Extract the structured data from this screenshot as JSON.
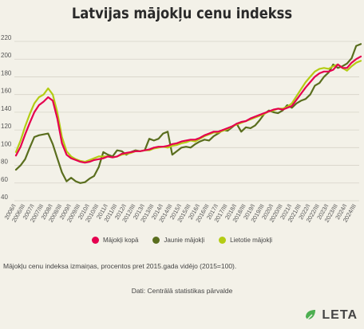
{
  "chart_data": {
    "type": "line",
    "title": "Latvijas mājokļu cenu indekss",
    "ylim": [
      40,
      220
    ],
    "yticks": [
      40,
      60,
      80,
      100,
      120,
      140,
      160,
      180,
      200,
      220
    ],
    "grid": true,
    "legend_position": "bottom",
    "x_tick_labels": [
      "2006/I",
      "2006/III",
      "2007/I",
      "2007/III",
      "2008/I",
      "2008/III",
      "2009/I",
      "2009/III",
      "2010/I",
      "2010/III",
      "2011/I",
      "2011/III",
      "2012/I",
      "2012/III",
      "2013/I",
      "2013/III",
      "2014/I",
      "2014/III",
      "2015/I",
      "2015/III",
      "2016/I",
      "2016/III",
      "2017/I",
      "2017/III",
      "2018/I",
      "2018/III",
      "2019/I",
      "2019/III",
      "2020/I",
      "2020/III",
      "2021/I",
      "2021/III",
      "2022/I",
      "2022/III",
      "2023/I",
      "2023/III",
      "2024/I",
      "2024/III"
    ],
    "series": [
      {
        "name": "Mājokļi kopā",
        "color": "#e5004f",
        "values": [
          91,
          101,
          115,
          128,
          140,
          148,
          152,
          157,
          153,
          133,
          105,
          92,
          88,
          86,
          84,
          83,
          84,
          86,
          87,
          88,
          90,
          89,
          90,
          93,
          94,
          95,
          96,
          96,
          97,
          98,
          100,
          101,
          101,
          102,
          104,
          105,
          107,
          108,
          109,
          109,
          111,
          114,
          116,
          118,
          118,
          120,
          122,
          124,
          127,
          129,
          130,
          133,
          135,
          137,
          139,
          141,
          143,
          144,
          143,
          145,
          147,
          154,
          161,
          168,
          174,
          180,
          184,
          186,
          186,
          188,
          194,
          190,
          190,
          196,
          200,
          203
        ]
      },
      {
        "name": "Jaunie mājokļi",
        "color": "#5a6e1e",
        "values": [
          75,
          80,
          87,
          100,
          112,
          114,
          115,
          116,
          104,
          88,
          72,
          62,
          66,
          62,
          60,
          61,
          65,
          68,
          78,
          95,
          92,
          90,
          97,
          96,
          92,
          95,
          97,
          96,
          97,
          110,
          108,
          110,
          116,
          118,
          92,
          96,
          100,
          101,
          100,
          104,
          107,
          109,
          108,
          113,
          116,
          120,
          119,
          123,
          127,
          118,
          123,
          122,
          125,
          131,
          138,
          142,
          140,
          139,
          142,
          148,
          145,
          150,
          153,
          155,
          160,
          170,
          173,
          180,
          185,
          194,
          190,
          192,
          195,
          201,
          215,
          217
        ]
      },
      {
        "name": "Lietotie mājokļi",
        "color": "#b4cc14",
        "values": [
          95,
          108,
          124,
          138,
          150,
          157,
          160,
          167,
          160,
          140,
          112,
          96,
          90,
          87,
          85,
          84,
          86,
          88,
          90,
          90,
          90,
          89,
          90,
          92,
          93,
          94,
          96,
          96,
          97,
          97,
          99,
          100,
          101,
          100,
          102,
          103,
          105,
          106,
          108,
          107,
          110,
          113,
          115,
          117,
          117,
          119,
          121,
          124,
          126,
          128,
          130,
          132,
          134,
          136,
          138,
          141,
          142,
          144,
          144,
          146,
          150,
          158,
          166,
          174,
          180,
          186,
          189,
          190,
          189,
          192,
          194,
          190,
          187,
          192,
          196,
          198
        ]
      }
    ]
  },
  "description": "Mājokļu cenu indeksa izmaiņas, procentos pret 2015.gada vidējo (2015=100).",
  "source": "Dati: Centrālā statistikas pārvalde",
  "logo": "LETA"
}
